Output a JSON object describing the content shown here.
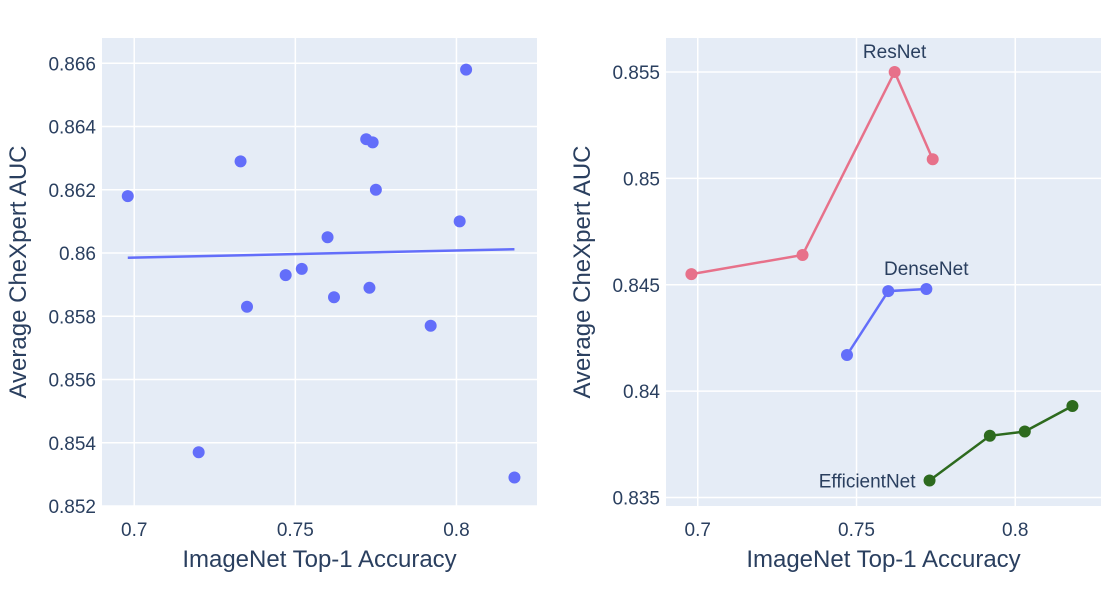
{
  "chart_data": [
    {
      "type": "scatter",
      "xlabel": "ImageNet Top-1 Accuracy",
      "ylabel": "Average CheXpert AUC",
      "xlim": [
        0.69,
        0.825
      ],
      "ylim": [
        0.852,
        0.8668
      ],
      "xticks": [
        0.7,
        0.75,
        0.8
      ],
      "xtick_labels": [
        "0.7",
        "0.75",
        "0.8"
      ],
      "yticks": [
        0.852,
        0.854,
        0.856,
        0.858,
        0.86,
        0.862,
        0.864,
        0.866
      ],
      "ytick_labels": [
        "0.852",
        "0.854",
        "0.856",
        "0.858",
        "0.86",
        "0.862",
        "0.864",
        "0.866"
      ],
      "grid": true,
      "marker_color": "#636efa",
      "points": [
        {
          "x": 0.698,
          "y": 0.8618
        },
        {
          "x": 0.72,
          "y": 0.8537
        },
        {
          "x": 0.733,
          "y": 0.8629
        },
        {
          "x": 0.735,
          "y": 0.8583
        },
        {
          "x": 0.747,
          "y": 0.8593
        },
        {
          "x": 0.752,
          "y": 0.8595
        },
        {
          "x": 0.76,
          "y": 0.8605
        },
        {
          "x": 0.762,
          "y": 0.8586
        },
        {
          "x": 0.772,
          "y": 0.8636
        },
        {
          "x": 0.773,
          "y": 0.8589
        },
        {
          "x": 0.774,
          "y": 0.8635
        },
        {
          "x": 0.775,
          "y": 0.862
        },
        {
          "x": 0.792,
          "y": 0.8577
        },
        {
          "x": 0.801,
          "y": 0.861
        },
        {
          "x": 0.803,
          "y": 0.8658
        },
        {
          "x": 0.818,
          "y": 0.8529
        }
      ],
      "trendline": {
        "x": [
          0.698,
          0.818
        ],
        "y": [
          0.85985,
          0.86012
        ]
      }
    },
    {
      "type": "line",
      "xlabel": "ImageNet Top-1 Accuracy",
      "ylabel": "Average CheXpert AUC",
      "xlim": [
        0.69,
        0.827
      ],
      "ylim": [
        0.8346,
        0.8566
      ],
      "xticks": [
        0.7,
        0.75,
        0.8
      ],
      "xtick_labels": [
        "0.7",
        "0.75",
        "0.8"
      ],
      "yticks": [
        0.835,
        0.84,
        0.845,
        0.85,
        0.855
      ],
      "ytick_labels": [
        "0.835",
        "0.84",
        "0.845",
        "0.85",
        "0.855"
      ],
      "grid": true,
      "series": [
        {
          "name": "ResNet",
          "color": "#e7718a",
          "x": [
            0.698,
            0.733,
            0.762,
            0.774
          ],
          "y": [
            0.8455,
            0.8464,
            0.855,
            0.8509
          ]
        },
        {
          "name": "DenseNet",
          "color": "#636efa",
          "x": [
            0.747,
            0.76,
            0.772
          ],
          "y": [
            0.8417,
            0.8447,
            0.8448
          ]
        },
        {
          "name": "EfficientNet",
          "color": "#2d6a1e",
          "x": [
            0.773,
            0.792,
            0.803,
            0.818
          ],
          "y": [
            0.8358,
            0.8379,
            0.8381,
            0.8393
          ]
        }
      ]
    }
  ]
}
